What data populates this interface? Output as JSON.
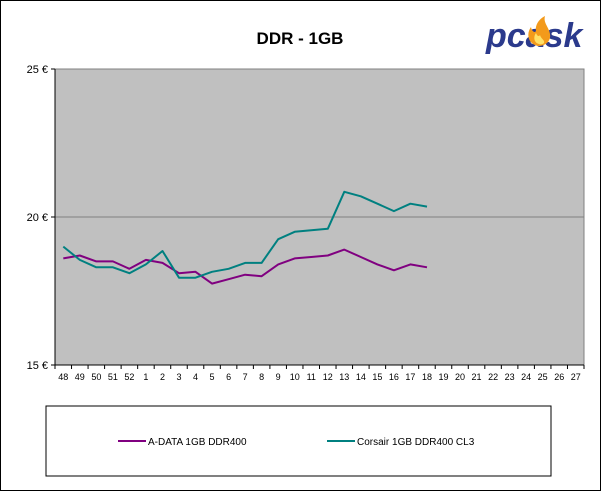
{
  "chart_data": {
    "type": "line",
    "title": "DDR - 1GB",
    "categories": [
      "48",
      "49",
      "50",
      "51",
      "52",
      "1",
      "2",
      "3",
      "4",
      "5",
      "6",
      "7",
      "8",
      "9",
      "10",
      "11",
      "12",
      "13",
      "14",
      "15",
      "16",
      "17",
      "18",
      "19",
      "20",
      "21",
      "22",
      "23",
      "24",
      "25",
      "26",
      "27"
    ],
    "y_ticks": [
      "25 €",
      "20 €",
      "15 €"
    ],
    "ylim": [
      15,
      25
    ],
    "grid": "horizontal major",
    "plot_background": "#c0c0c0",
    "legend_position": "bottom",
    "series": [
      {
        "name": "A-DATA 1GB DDR400",
        "color": "#800080",
        "values": [
          18.6,
          18.7,
          18.5,
          18.5,
          18.25,
          18.55,
          18.45,
          18.1,
          18.15,
          17.75,
          17.9,
          18.05,
          18.0,
          18.4,
          18.6,
          18.65,
          18.7,
          18.9,
          18.65,
          18.4,
          18.2,
          18.4,
          18.3,
          null,
          null,
          null,
          null,
          null,
          null,
          null,
          null,
          null
        ]
      },
      {
        "name": "Corsair 1GB DDR400 CL3",
        "color": "#008080",
        "values": [
          19.0,
          18.55,
          18.3,
          18.3,
          18.1,
          18.4,
          18.85,
          17.95,
          17.95,
          18.15,
          18.25,
          18.45,
          18.45,
          19.25,
          19.5,
          19.55,
          19.6,
          20.85,
          20.7,
          20.45,
          20.2,
          20.45,
          20.35,
          null,
          null,
          null,
          null,
          null,
          null,
          null,
          null,
          null
        ]
      }
    ]
  },
  "logo": {
    "text": "pcask"
  }
}
